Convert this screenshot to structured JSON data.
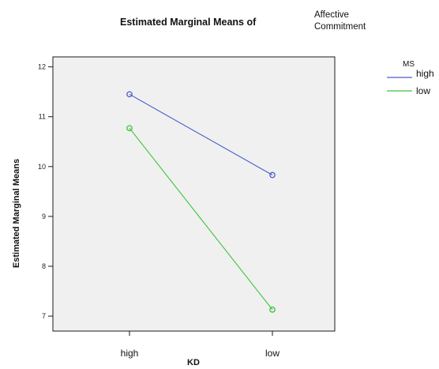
{
  "chart_data": {
    "type": "line",
    "title": "Estimated Marginal Means of",
    "subtitle_lines": [
      "Affective",
      "Commitment"
    ],
    "xlabel": "KD",
    "ylabel": "Estimated Marginal Means",
    "categories": [
      "high",
      "low"
    ],
    "ylim": [
      6.7,
      12.2
    ],
    "yticks": [
      7,
      8,
      9,
      10,
      11,
      12
    ],
    "legend_title": "MS",
    "legend_position": "top-right, outside plot",
    "grid": false,
    "plot_background": "#f0f0f0",
    "series": [
      {
        "name": "high",
        "color": "#4a5ec8",
        "values": [
          11.45,
          9.83
        ]
      },
      {
        "name": "low",
        "color": "#3cc43c",
        "values": [
          10.77,
          7.13
        ]
      }
    ]
  }
}
